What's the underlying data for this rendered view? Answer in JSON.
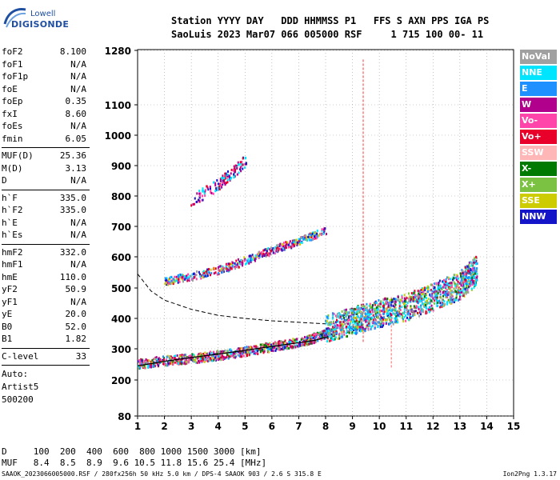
{
  "logo": {
    "brand": "Lowell",
    "product": "DIGISONDE"
  },
  "header": {
    "line1": "Station YYYY DAY   DDD HHMMSS P1   FFS S AXN PPS IGA PS",
    "line2": "SaoLuis 2023 Mar07 066 005000 RSF     1 715 100 00- 11"
  },
  "params": {
    "group1": [
      {
        "k": "foF2",
        "v": "8.100"
      },
      {
        "k": "foF1",
        "v": "N/A"
      },
      {
        "k": "foF1p",
        "v": "N/A"
      },
      {
        "k": "foE",
        "v": "N/A"
      },
      {
        "k": "foEp",
        "v": "0.35"
      },
      {
        "k": "fxI",
        "v": "8.60"
      },
      {
        "k": "foEs",
        "v": "N/A"
      },
      {
        "k": "fmin",
        "v": "6.05"
      }
    ],
    "group2": [
      {
        "k": "MUF(D)",
        "v": "25.36"
      },
      {
        "k": "M(D)",
        "v": "3.13"
      },
      {
        "k": "D",
        "v": "N/A"
      }
    ],
    "group3": [
      {
        "k": "h`F",
        "v": "335.0"
      },
      {
        "k": "h`F2",
        "v": "335.0"
      },
      {
        "k": "h`E",
        "v": "N/A"
      },
      {
        "k": "h`Es",
        "v": "N/A"
      }
    ],
    "group4": [
      {
        "k": "hmF2",
        "v": "332.0"
      },
      {
        "k": "hmF1",
        "v": "N/A"
      },
      {
        "k": "hmE",
        "v": "110.0"
      },
      {
        "k": "yF2",
        "v": "50.9"
      },
      {
        "k": "yF1",
        "v": "N/A"
      },
      {
        "k": "yE",
        "v": "20.0"
      },
      {
        "k": "B0",
        "v": "52.0"
      },
      {
        "k": "B1",
        "v": "1.82"
      }
    ],
    "clevel": {
      "k": "C-level",
      "v": "33"
    },
    "auto": [
      "Auto:",
      "Artist5",
      "500200"
    ]
  },
  "legend": [
    {
      "label": "NoVal",
      "color": "#a0a0a0",
      "text": "#ffffff"
    },
    {
      "label": "NNE",
      "color": "#00e5ff",
      "text": "#ffffff"
    },
    {
      "label": "E",
      "color": "#1e90ff",
      "text": "#ffffff"
    },
    {
      "label": "W",
      "color": "#b0008c",
      "text": "#ffffff"
    },
    {
      "label": "Vo-",
      "color": "#ff44aa",
      "text": "#ffffff"
    },
    {
      "label": "Vo+",
      "color": "#e8002a",
      "text": "#ffffff"
    },
    {
      "label": "SSW",
      "color": "#ffb6b6",
      "text": "#ffffff"
    },
    {
      "label": "X-",
      "color": "#007a00",
      "text": "#ffffff"
    },
    {
      "label": "X+",
      "color": "#7cc242",
      "text": "#ffffff"
    },
    {
      "label": "SSE",
      "color": "#cccc00",
      "text": "#ffffff"
    },
    {
      "label": "NNW",
      "color": "#1414c8",
      "text": "#ffffff"
    }
  ],
  "chart_data": {
    "type": "scatter",
    "title": "",
    "xlabel": "",
    "ylabel": "",
    "xlim": [
      1,
      15
    ],
    "ylim": [
      80,
      1280
    ],
    "y_scale": "reciprocal-ish (ionogram)",
    "x_ticks": [
      1,
      2,
      3,
      4,
      5,
      6,
      7,
      8,
      9,
      10,
      11,
      12,
      13,
      14,
      15
    ],
    "y_ticks": [
      80,
      200,
      300,
      400,
      500,
      600,
      700,
      800,
      900,
      1000,
      1100,
      1280
    ],
    "traces": {
      "o_trace_F": [
        [
          1,
          255
        ],
        [
          2,
          265
        ],
        [
          3,
          272
        ],
        [
          4,
          282
        ],
        [
          5,
          295
        ],
        [
          6,
          310
        ],
        [
          7,
          325
        ],
        [
          7.8,
          345
        ],
        [
          8.1,
          360
        ]
      ],
      "x_trace_F": [
        [
          8,
          370
        ],
        [
          9,
          395
        ],
        [
          10,
          420
        ],
        [
          11,
          440
        ],
        [
          12,
          475
        ],
        [
          13,
          510
        ],
        [
          13.6,
          560
        ]
      ],
      "second_hop": [
        [
          2,
          525
        ],
        [
          3,
          540
        ],
        [
          4,
          560
        ],
        [
          5,
          590
        ],
        [
          6,
          625
        ],
        [
          7,
          655
        ],
        [
          8,
          690
        ]
      ],
      "third_hop": [
        [
          3,
          790
        ],
        [
          4,
          840
        ],
        [
          4.5,
          880
        ],
        [
          5,
          920
        ]
      ]
    },
    "profile_solid": [
      [
        1,
        245
      ],
      [
        2,
        260
      ],
      [
        3,
        272
      ],
      [
        4,
        283
      ],
      [
        5,
        295
      ],
      [
        6,
        308
      ],
      [
        7,
        320
      ],
      [
        7.6,
        328
      ],
      [
        8.1,
        340
      ]
    ],
    "profile_dashed": [
      [
        1,
        545
      ],
      [
        1.5,
        490
      ],
      [
        2,
        460
      ],
      [
        3,
        430
      ],
      [
        4,
        410
      ],
      [
        5,
        400
      ],
      [
        6,
        392
      ],
      [
        7,
        387
      ],
      [
        8,
        382
      ]
    ],
    "vertical_marker_x": 9.4,
    "vertical_marker_x2": 10.45
  },
  "footer": {
    "d_row": "D     100  200  400  600  800 1000 1500 3000 [km]",
    "muf_row": "MUF   8.4  8.5  8.9  9.6 10.5 11.8 15.6 25.4 [MHz]",
    "file": "SAAOK_2023066005000.RSF / 280fx256h 50 kHz 5.0 km / DPS-4 SAAOK 903 / 2.6 S 315.8 E",
    "version": "Ion2Png 1.3.17"
  }
}
